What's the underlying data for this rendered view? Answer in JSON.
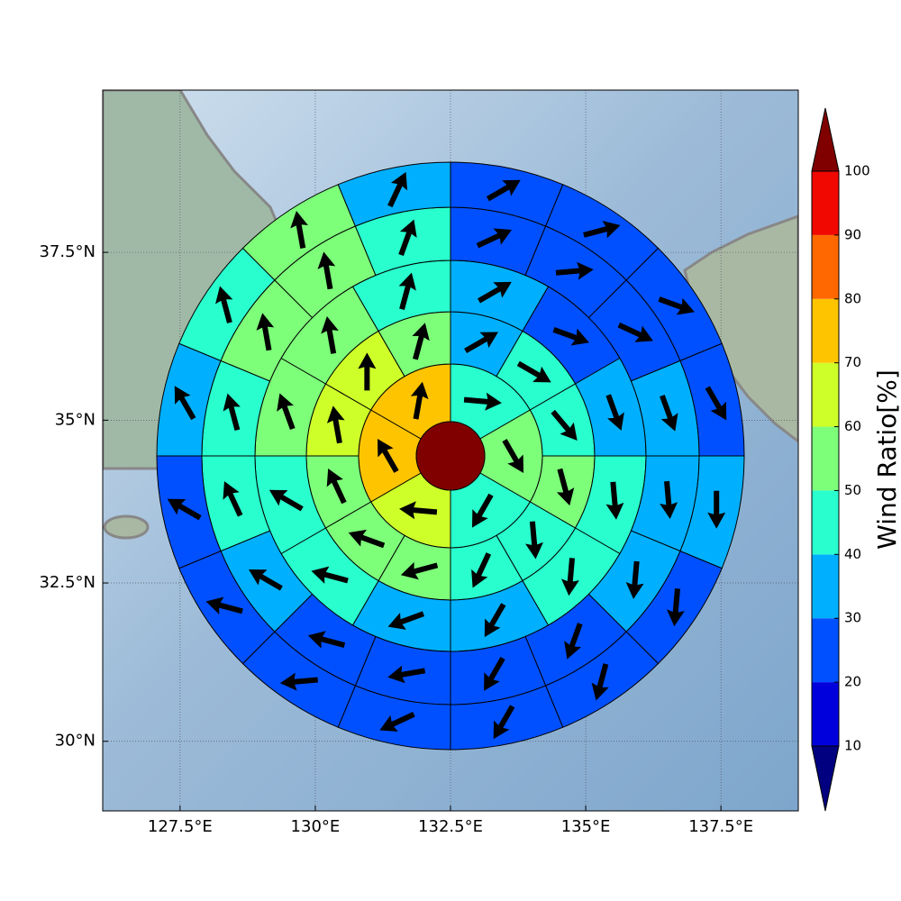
{
  "chart_data": {
    "type": "polar-grid-map",
    "projection": "mercator",
    "grid": true,
    "xlim": [
      126.07,
      138.93
    ],
    "ylim": [
      28.88,
      39.84
    ],
    "xticks": [
      {
        "value": 127.5,
        "label": "127.5°E"
      },
      {
        "value": 130,
        "label": "130°E"
      },
      {
        "value": 132.5,
        "label": "132.5°E"
      },
      {
        "value": 135,
        "label": "135°E"
      },
      {
        "value": 137.5,
        "label": "137.5°E"
      }
    ],
    "yticks": [
      {
        "value": 30,
        "label": "30°N"
      },
      {
        "value": 32.5,
        "label": "32.5°N"
      },
      {
        "value": 35,
        "label": "35°N"
      },
      {
        "value": 37.5,
        "label": "37.5°N"
      }
    ],
    "center_value": 105,
    "rings": [
      {
        "values": [
          45,
          55,
          45,
          65,
          75,
          75
        ],
        "directions": [
          95,
          150,
          210,
          275,
          330,
          10
        ]
      },
      {
        "values": [
          35,
          45,
          45,
          55,
          45,
          45,
          55,
          55,
          55,
          65,
          65,
          55
        ],
        "directions": [
          60,
          120,
          140,
          165,
          175,
          205,
          255,
          290,
          335,
          350,
          0,
          15
        ]
      },
      {
        "values": [
          35,
          25,
          35,
          45,
          45,
          35,
          35,
          45,
          45,
          55,
          55,
          45
        ],
        "directions": [
          60,
          110,
          160,
          175,
          185,
          210,
          250,
          285,
          300,
          340,
          350,
          15
        ]
      },
      {
        "values": [
          25,
          25,
          25,
          35,
          35,
          35,
          25,
          25,
          25,
          25,
          35,
          45,
          45,
          55,
          55,
          45
        ],
        "directions": [
          65,
          85,
          115,
          160,
          175,
          185,
          200,
          210,
          260,
          285,
          300,
          335,
          345,
          350,
          350,
          20
        ]
      },
      {
        "values": [
          25,
          25,
          25,
          25,
          35,
          25,
          25,
          25,
          25,
          25,
          25,
          25,
          35,
          45,
          55,
          35
        ],
        "directions": [
          60,
          75,
          110,
          150,
          180,
          185,
          195,
          210,
          245,
          265,
          285,
          300,
          330,
          345,
          350,
          25
        ]
      }
    ],
    "colorbar": {
      "label": "Wind Ratio[%]",
      "levels": [
        10,
        20,
        30,
        40,
        50,
        60,
        70,
        80,
        90,
        100
      ],
      "colors": [
        "#0000dd",
        "#0050ff",
        "#00b0ff",
        "#29ffce",
        "#7dff7a",
        "#ceff29",
        "#ffc400",
        "#ff6800",
        "#f10800"
      ],
      "under_color": "#000080",
      "over_color": "#800000"
    },
    "arrow_color": "#000000"
  }
}
